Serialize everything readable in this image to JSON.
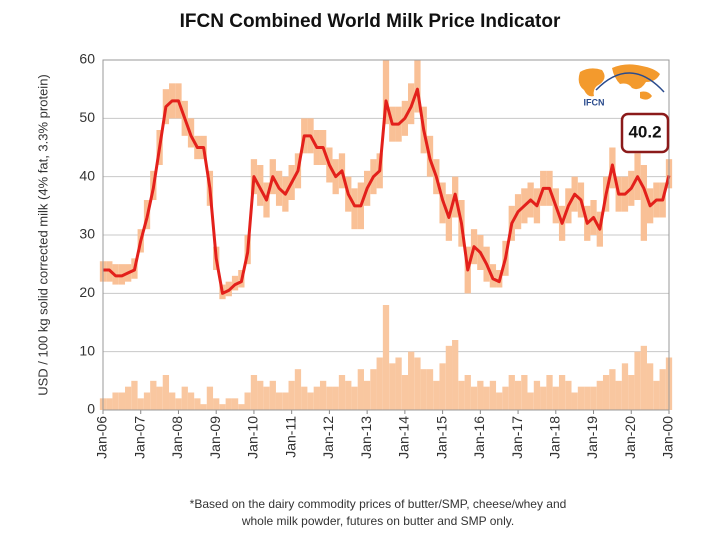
{
  "chart_data": {
    "type": "line",
    "title": "IFCN Combined World Milk Price Indicator",
    "y_label": "USD / 100 kg solid corrected milk (4% fat, 3.3% protein)",
    "footnote": [
      "*Based on the dairy commodity prices of butter/SMP, cheese/whey and",
      "whole milk powder, futures on butter and SMP  only."
    ],
    "logo_text": "IFCN",
    "annotation": 40.2,
    "categories": [
      "Jan-06",
      null,
      null,
      null,
      null,
      null,
      "Jan-07",
      null,
      null,
      null,
      null,
      null,
      "Jan-08",
      null,
      null,
      null,
      null,
      null,
      "Jan-09",
      null,
      null,
      null,
      null,
      null,
      "Jan-10",
      null,
      null,
      null,
      null,
      null,
      "Jan-11",
      null,
      null,
      null,
      null,
      null,
      "Jan-12",
      null,
      null,
      null,
      null,
      null,
      "Jan-13",
      null,
      null,
      null,
      null,
      null,
      "Jan-14",
      null,
      null,
      null,
      null,
      null,
      "Jan-15",
      null,
      null,
      null,
      null,
      null,
      "Jan-16",
      null,
      null,
      null,
      null,
      null,
      "Jan-17",
      null,
      null,
      null,
      null,
      null,
      "Jan-18",
      null,
      null,
      null,
      null,
      null,
      "Jan-19",
      null,
      null,
      null,
      null,
      null,
      "Jan-20",
      null,
      null,
      null,
      null,
      null,
      "Jan-00"
    ],
    "series": [
      {
        "color": "#e3201b",
        "values": [
          24,
          24,
          23,
          23,
          23.5,
          24,
          29,
          33,
          38,
          45,
          52,
          53,
          53,
          50,
          47,
          45,
          45,
          38,
          26,
          20,
          20.5,
          21.5,
          22,
          27,
          40,
          38,
          36,
          40,
          38,
          37,
          39,
          41,
          47,
          47,
          45,
          45,
          42,
          40,
          41,
          37,
          35,
          35,
          38,
          40,
          41,
          53,
          49,
          49,
          50,
          52,
          55,
          48,
          43,
          40,
          36,
          33,
          37,
          32,
          24,
          28,
          27,
          25,
          22.5,
          22,
          26,
          32,
          34,
          35,
          36,
          35,
          38,
          38,
          35,
          32,
          35,
          37,
          36,
          32,
          33,
          31,
          37,
          42,
          37,
          37,
          38,
          40,
          38,
          35,
          36,
          36,
          40.2
        ]
      }
    ],
    "range": {
      "color": "#f9c096",
      "low": [
        22,
        22,
        21.5,
        21.5,
        22,
        22.5,
        27,
        31,
        36,
        42,
        49,
        50,
        50,
        47,
        45,
        43,
        43,
        35,
        24,
        19,
        19.5,
        20.5,
        21,
        25,
        37,
        35,
        33,
        37,
        35,
        34,
        36,
        38,
        44,
        44,
        42,
        42,
        39,
        37,
        38,
        34,
        31,
        31,
        35,
        37,
        38,
        49,
        46,
        46,
        47,
        49,
        51,
        44,
        40,
        37,
        32,
        29,
        33,
        28,
        20,
        25,
        24,
        22,
        21,
        21,
        23,
        29,
        31,
        32,
        33,
        32,
        35,
        35,
        32,
        29,
        32,
        34,
        33,
        29,
        30,
        28,
        34,
        38,
        34,
        34,
        35,
        36,
        29,
        32,
        33,
        33,
        38
      ],
      "high": [
        25.5,
        25.5,
        25,
        25,
        25,
        26,
        31,
        36,
        41,
        48,
        55,
        56,
        56,
        53,
        50,
        47,
        47,
        41,
        28,
        21.5,
        22,
        23,
        24,
        30,
        43,
        42,
        39,
        43,
        41,
        40,
        42,
        44,
        50,
        50,
        48,
        48,
        45,
        43,
        44,
        40,
        38,
        39,
        41,
        43,
        44,
        60,
        52,
        52,
        53,
        56,
        60,
        52,
        47,
        43,
        39,
        37,
        40,
        36,
        28,
        31,
        30,
        28,
        25,
        24,
        29,
        35,
        37,
        38,
        39,
        38,
        41,
        41,
        38,
        35,
        38,
        40,
        39,
        35,
        36,
        34,
        40,
        45,
        40,
        40,
        41,
        44,
        42,
        38,
        39,
        39,
        43
      ]
    },
    "volatility": {
      "color": "#f9c7a0",
      "values": [
        2,
        2,
        3,
        3,
        4,
        5,
        2,
        3,
        5,
        4,
        6,
        3,
        2,
        4,
        3,
        2,
        1,
        4,
        2,
        1,
        2,
        2,
        1,
        3,
        6,
        5,
        4,
        5,
        3,
        3,
        5,
        7,
        4,
        3,
        4,
        5,
        4,
        4,
        6,
        5,
        4,
        7,
        5,
        7,
        9,
        18,
        8,
        9,
        6,
        10,
        9,
        7,
        7,
        5,
        8,
        11,
        12,
        5,
        6,
        4,
        5,
        4,
        5,
        3,
        4,
        6,
        5,
        6,
        3,
        5,
        4,
        6,
        4,
        6,
        5,
        3,
        4,
        4,
        4,
        5,
        6,
        7,
        5,
        8,
        6,
        10,
        11,
        8,
        5,
        7,
        9
      ]
    },
    "ylim": [
      0,
      60
    ],
    "yticks": [
      0,
      10,
      20,
      30,
      40,
      50,
      60
    ],
    "grid": true
  }
}
